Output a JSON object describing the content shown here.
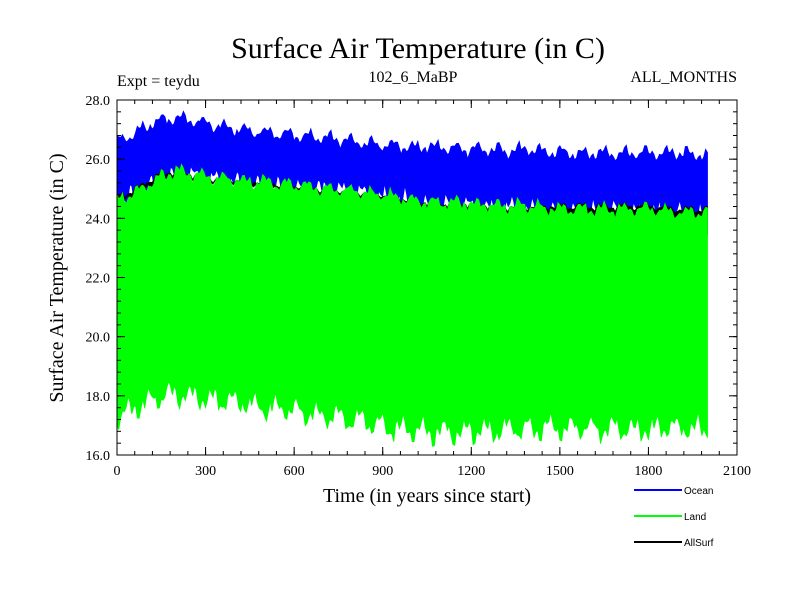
{
  "chart_data": {
    "type": "line",
    "title": "Surface Air Temperature (in C)",
    "subtitle_left": "Expt = teydu",
    "subtitle_center": "102_6_MaBP",
    "subtitle_right": "ALL_MONTHS",
    "xlabel": "Time (in years since start)",
    "ylabel": "Surface Air Temperature (in C)",
    "xlim": [
      0,
      2100
    ],
    "ylim": [
      16.0,
      28.0
    ],
    "x_ticks": [
      0,
      300,
      600,
      900,
      1200,
      1500,
      1800,
      2100
    ],
    "x_tick_labels": [
      "0",
      "300",
      "600",
      "900",
      "1200",
      "1500",
      "1800",
      "2100"
    ],
    "y_ticks": [
      16,
      18,
      20,
      22,
      24,
      26,
      28
    ],
    "y_tick_labels": [
      "16.0",
      "18.0",
      "20.0",
      "22.0",
      "24.0",
      "26.0",
      "28.0"
    ],
    "legend_position": "bottom-right, outside",
    "series": [
      {
        "name": "Ocean",
        "color": "#0000ff",
        "x": [
          0,
          50,
          100,
          150,
          200,
          250,
          300,
          400,
          500,
          600,
          700,
          800,
          900,
          1000,
          1100,
          1200,
          1300,
          1400,
          1500,
          1600,
          1700,
          1800,
          1900,
          2000
        ],
        "upper": [
          26.6,
          26.8,
          27.1,
          27.3,
          27.4,
          27.3,
          27.2,
          27.0,
          26.9,
          26.8,
          26.7,
          26.6,
          26.5,
          26.4,
          26.4,
          26.3,
          26.3,
          26.3,
          26.2,
          26.2,
          26.2,
          26.2,
          26.2,
          26.1
        ],
        "lower": [
          24.5,
          24.7,
          25.0,
          25.3,
          25.5,
          25.4,
          25.3,
          25.2,
          25.1,
          25.0,
          24.9,
          24.8,
          24.7,
          24.5,
          24.4,
          24.4,
          24.3,
          24.3,
          24.2,
          24.2,
          24.2,
          24.2,
          24.1,
          24.1
        ]
      },
      {
        "name": "Land",
        "color": "#00ff00",
        "x": [
          0,
          50,
          100,
          150,
          200,
          250,
          300,
          400,
          500,
          600,
          700,
          800,
          900,
          1000,
          1100,
          1200,
          1300,
          1400,
          1500,
          1600,
          1700,
          1800,
          1900,
          2000
        ],
        "upper": [
          24.6,
          24.8,
          25.1,
          25.4,
          25.6,
          25.5,
          25.4,
          25.3,
          25.2,
          25.1,
          25.0,
          24.9,
          24.8,
          24.6,
          24.5,
          24.5,
          24.4,
          24.4,
          24.3,
          24.3,
          24.3,
          24.3,
          24.2,
          24.2
        ],
        "lower": [
          17.3,
          17.5,
          17.8,
          18.0,
          18.1,
          18.0,
          17.9,
          17.8,
          17.6,
          17.5,
          17.4,
          17.2,
          17.0,
          16.8,
          16.8,
          16.8,
          16.9,
          16.9,
          16.9,
          16.9,
          16.9,
          16.9,
          16.9,
          16.9
        ]
      },
      {
        "name": "AllSurf",
        "color": "#000000",
        "x": [
          0,
          50,
          100,
          150,
          200,
          250,
          300,
          400,
          500,
          600,
          700,
          800,
          900,
          1000,
          1100,
          1200,
          1300,
          1400,
          1500,
          1600,
          1700,
          1800,
          1900,
          2000
        ],
        "upper": [
          24.7,
          24.9,
          25.2,
          25.5,
          25.6,
          25.5,
          25.4,
          25.3,
          25.2,
          25.1,
          25.0,
          24.9,
          24.8,
          24.6,
          24.5,
          24.5,
          24.4,
          24.4,
          24.4,
          24.4,
          24.4,
          24.4,
          24.3,
          24.3
        ],
        "lower": [
          24.4,
          24.6,
          24.9,
          25.2,
          25.3,
          25.2,
          25.1,
          25.0,
          24.9,
          24.8,
          24.6,
          24.4,
          24.2,
          24.0,
          23.9,
          23.9,
          23.8,
          23.8,
          23.8,
          23.8,
          23.8,
          23.8,
          23.8,
          23.8
        ]
      }
    ]
  }
}
